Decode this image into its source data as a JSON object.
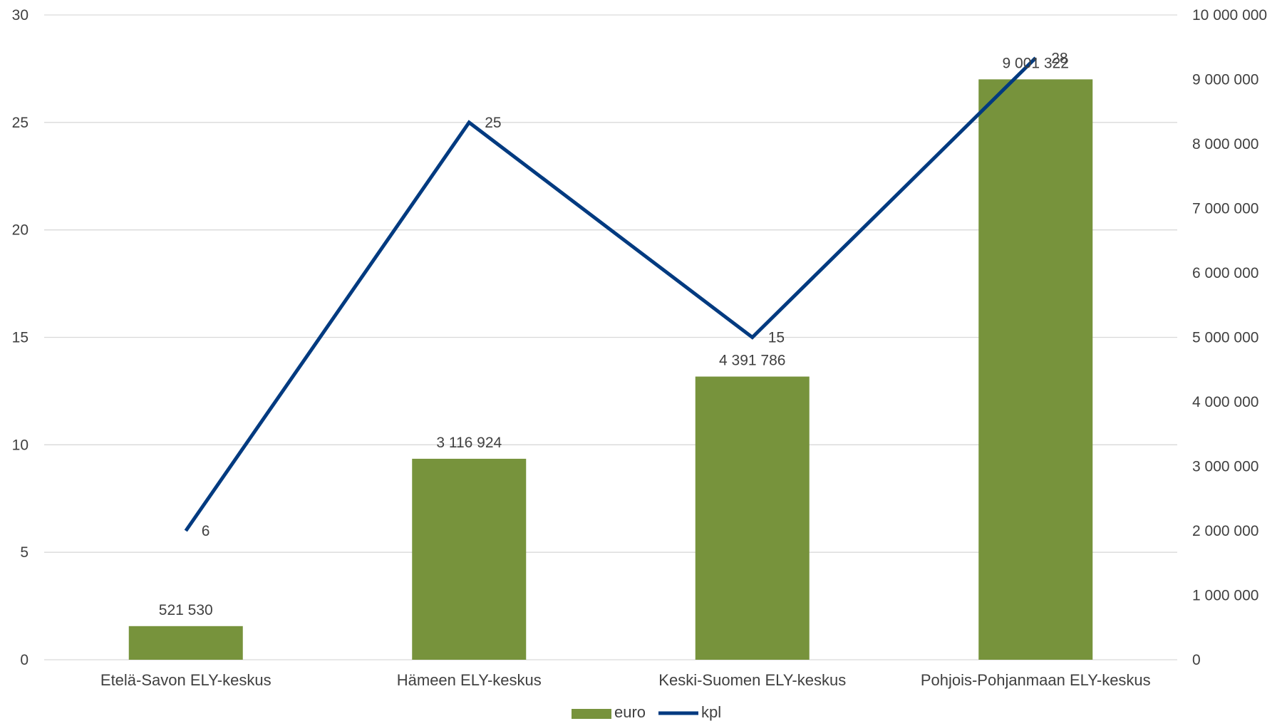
{
  "chart_data": {
    "type": "bar",
    "categories": [
      "Etelä-Savon ELY-keskus",
      "Hämeen ELY-keskus",
      "Keski-Suomen ELY-keskus",
      "Pohjois-Pohjanmaan ELY-keskus"
    ],
    "series": [
      {
        "name": "euro",
        "type": "bar",
        "axis": "right",
        "color": "#77933c",
        "values": [
          521530,
          3116924,
          4391786,
          9001322
        ],
        "labels": [
          "521 530",
          "3 116 924",
          "4 391 786",
          "9 001 322"
        ]
      },
      {
        "name": "kpl",
        "type": "line",
        "axis": "left",
        "color": "#003a80",
        "values": [
          6,
          25,
          15,
          28
        ],
        "labels": [
          "6",
          "25",
          "15",
          "28"
        ]
      }
    ],
    "y_left": {
      "min": 0,
      "max": 30,
      "step": 5,
      "ticks": [
        "0",
        "5",
        "10",
        "15",
        "20",
        "25",
        "30"
      ]
    },
    "y_right": {
      "min": 0,
      "max": 10000000,
      "step": 1000000,
      "ticks": [
        "0",
        "1 000 000",
        "2 000 000",
        "3 000 000",
        "4 000 000",
        "5 000 000",
        "6 000 000",
        "7 000 000",
        "8 000 000",
        "9 000 000",
        "10 000 000"
      ]
    },
    "grid": true,
    "gridColor": "#d9d9d9",
    "legend": {
      "position": "bottom",
      "items": [
        "euro",
        "kpl"
      ]
    }
  }
}
